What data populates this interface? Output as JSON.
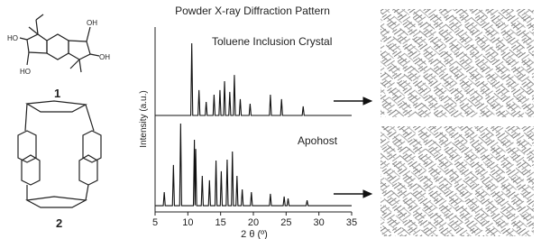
{
  "figure": {
    "compound_labels": [
      "1",
      "2"
    ]
  },
  "chart_data": {
    "type": "line",
    "title": "Powder X-ray Diffraction Pattern",
    "x_label": "2 θ (º)",
    "y_label": "Intensity (a.u.)",
    "xlim": [
      5,
      35
    ],
    "xticks": [
      5,
      10,
      15,
      20,
      25,
      30,
      35
    ],
    "ylim": [
      0,
      100
    ],
    "grid": false,
    "series": [
      {
        "name": "Toluene Inclusion Crystal",
        "color": "#111111",
        "x": [
          5,
          10.45,
          10.6,
          10.75,
          11.55,
          11.7,
          11.85,
          12.65,
          12.8,
          12.95,
          13.85,
          14.0,
          14.15,
          14.75,
          14.9,
          15.05,
          15.45,
          15.6,
          15.75,
          16.25,
          16.4,
          16.55,
          16.95,
          17.1,
          17.25,
          17.85,
          18.0,
          18.15,
          19.35,
          19.5,
          19.65,
          22.45,
          22.6,
          22.75,
          24.15,
          24.3,
          24.45,
          27.45,
          27.6,
          27.75,
          35
        ],
        "values": [
          52.2,
          52.2,
          91.2,
          52.2,
          52.2,
          65.9,
          52.2,
          52.2,
          59.5,
          52.2,
          52.2,
          63.4,
          52.2,
          52.2,
          65.9,
          52.2,
          52.2,
          70.7,
          52.2,
          52.2,
          64.9,
          52.2,
          52.2,
          74.1,
          52.2,
          52.2,
          61,
          52.2,
          52.2,
          58.5,
          52.2,
          52.2,
          63.4,
          52.2,
          52.2,
          61,
          52.2,
          52.2,
          57.1,
          52.2,
          52.2
        ]
      },
      {
        "name": "Apohost",
        "color": "#111111",
        "x": [
          5,
          6.25,
          6.4,
          6.55,
          7.65,
          7.8,
          7.95,
          8.75,
          8.9,
          9.05,
          10.85,
          11.0,
          11.1,
          11.2,
          11.35,
          12.05,
          12.2,
          12.35,
          13.15,
          13.3,
          13.45,
          14.15,
          14.3,
          14.45,
          14.95,
          15.1,
          15.25,
          15.85,
          16.0,
          16.15,
          16.65,
          16.8,
          16.95,
          17.35,
          17.5,
          17.65,
          18.15,
          18.3,
          18.45,
          19.55,
          19.7,
          19.85,
          22.45,
          22.6,
          22.75,
          24.55,
          24.7,
          24.85,
          25.15,
          25.3,
          25.45,
          28.05,
          28.2,
          28.35,
          35
        ],
        "values": [
          3.4,
          3.4,
          10.7,
          3.4,
          3.4,
          25.4,
          3.4,
          3.4,
          47.8,
          3.4,
          3.4,
          39,
          3.6,
          34.1,
          3.4,
          3.4,
          19.5,
          3.4,
          3.4,
          17.1,
          3.4,
          3.4,
          27.8,
          3.4,
          3.4,
          22,
          3.4,
          3.4,
          28.3,
          3.4,
          3.4,
          32.7,
          3.4,
          3.4,
          19.5,
          3.4,
          3.4,
          12.2,
          3.4,
          3.4,
          10.7,
          3.4,
          3.4,
          9.8,
          3.4,
          3.4,
          8.3,
          3.4,
          3.4,
          7.3,
          3.4,
          3.4,
          6.3,
          3.4,
          3.4
        ]
      }
    ]
  }
}
